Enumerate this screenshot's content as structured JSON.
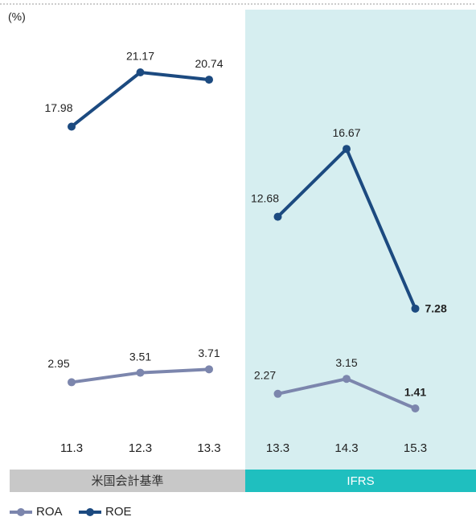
{
  "chart_data": {
    "type": "line",
    "unit": "(%)",
    "groups": [
      {
        "label": "米国会計基準",
        "categories": [
          "11.3",
          "12.3",
          "13.3"
        ]
      },
      {
        "label": "IFRS",
        "categories": [
          "13.3",
          "14.3",
          "15.3"
        ]
      }
    ],
    "series": [
      {
        "name": "ROA",
        "color": "#7c86ad",
        "values": [
          [
            2.95,
            3.51,
            3.71
          ],
          [
            2.27,
            3.15,
            1.41
          ]
        ]
      },
      {
        "name": "ROE",
        "color": "#1c4a80",
        "values": [
          [
            17.98,
            21.17,
            20.74
          ],
          [
            12.68,
            16.67,
            7.28
          ]
        ]
      }
    ]
  }
}
